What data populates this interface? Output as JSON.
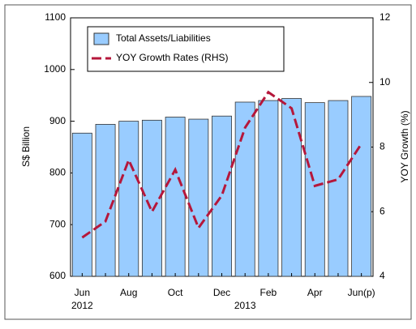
{
  "chart_data": {
    "type": "bar_line",
    "categories": [
      "Jun",
      null,
      "Aug",
      null,
      "Oct",
      null,
      "Dec",
      null,
      "Feb",
      null,
      "Apr",
      null,
      "Jun(p)"
    ],
    "year_labels": [
      "2012",
      "2013"
    ],
    "ylabel": "S$ Billion",
    "y2label": "YOY Growth (%)",
    "ylim": [
      600,
      1100
    ],
    "yticks": [
      600,
      700,
      800,
      900,
      1000,
      1100
    ],
    "y2lim": [
      4,
      12
    ],
    "y2ticks": [
      4,
      6,
      8,
      10,
      12
    ],
    "series": [
      {
        "name": "Total Assets/Liabilities",
        "type": "bar",
        "color": "#99ccff",
        "values": [
          877,
          894,
          900,
          902,
          908,
          904,
          910,
          937,
          940,
          944,
          936,
          940,
          948
        ]
      },
      {
        "name": "YOY Growth Rates (RHS)",
        "type": "line",
        "axis": "y2",
        "color": "#b5173b",
        "values": [
          5.2,
          5.7,
          7.6,
          6.0,
          7.3,
          5.5,
          6.5,
          8.6,
          9.7,
          9.2,
          6.8,
          7.0,
          8.1
        ]
      }
    ]
  }
}
